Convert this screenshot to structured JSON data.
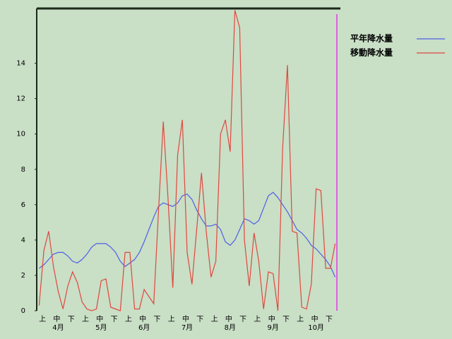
{
  "chart_data": {
    "type": "line",
    "categories": [
      null,
      "上",
      null,
      null,
      "中",
      null,
      null,
      "下",
      null,
      null,
      "上",
      null,
      null,
      "中",
      null,
      null,
      "下",
      null,
      null,
      "上",
      null,
      null,
      "中",
      null,
      null,
      "下",
      null,
      null,
      "上",
      null,
      null,
      "中",
      null,
      null,
      "下",
      null,
      null,
      "上",
      null,
      null,
      "中",
      null,
      null,
      "下",
      null,
      null,
      "上",
      null,
      null,
      "中",
      null,
      null,
      "下",
      null,
      null,
      "上",
      null,
      null,
      "中",
      null,
      null,
      "下",
      null
    ],
    "month_labels": [
      "4月",
      "5月",
      "6月",
      "7月",
      "8月",
      "9月",
      "10月"
    ],
    "series": [
      {
        "name": "平年降水量",
        "color": "#4f5fe6",
        "values": [
          2.4,
          2.6,
          2.9,
          3.2,
          3.3,
          3.3,
          3.1,
          2.8,
          2.7,
          2.9,
          3.2,
          3.6,
          3.8,
          3.8,
          3.8,
          3.6,
          3.3,
          2.8,
          2.5,
          2.7,
          2.9,
          3.3,
          3.9,
          4.6,
          5.3,
          5.9,
          6.1,
          6.0,
          5.9,
          6.1,
          6.5,
          6.6,
          6.3,
          5.7,
          5.2,
          4.8,
          4.8,
          4.9,
          4.6,
          3.9,
          3.7,
          4.0,
          4.6,
          5.2,
          5.1,
          4.9,
          5.1,
          5.8,
          6.5,
          6.7,
          6.4,
          6.0,
          5.6,
          5.1,
          4.6,
          4.4,
          4.1,
          3.7,
          3.5,
          3.2,
          2.9,
          2.5,
          1.9
        ]
      },
      {
        "name": "移動降水量",
        "color": "#e0473f",
        "values": [
          0.3,
          3.4,
          4.5,
          2.5,
          1.1,
          0.1,
          1.4,
          2.2,
          1.6,
          0.5,
          0.1,
          0,
          0.1,
          1.7,
          1.8,
          0.2,
          0.1,
          0,
          3.3,
          3.3,
          0.1,
          0.1,
          1.2,
          0.8,
          0.4,
          5.6,
          10.7,
          6.3,
          1.3,
          8.8,
          10.8,
          3.3,
          1.5,
          4.6,
          7.8,
          4.5,
          1.9,
          2.8,
          10.0,
          10.8,
          9.0,
          17,
          16,
          4,
          1.4,
          4.4,
          2.8,
          0.1,
          2.2,
          2.1,
          0,
          9.2,
          13.9,
          4.5,
          4.4,
          0.2,
          0.1,
          1.5,
          6.9,
          6.8,
          2.4,
          2.4,
          3.8
        ]
      }
    ],
    "ylim": [
      0,
      17.1
    ],
    "yticks": [
      0,
      2,
      4,
      6,
      8,
      10,
      12,
      14
    ],
    "grid": false
  }
}
